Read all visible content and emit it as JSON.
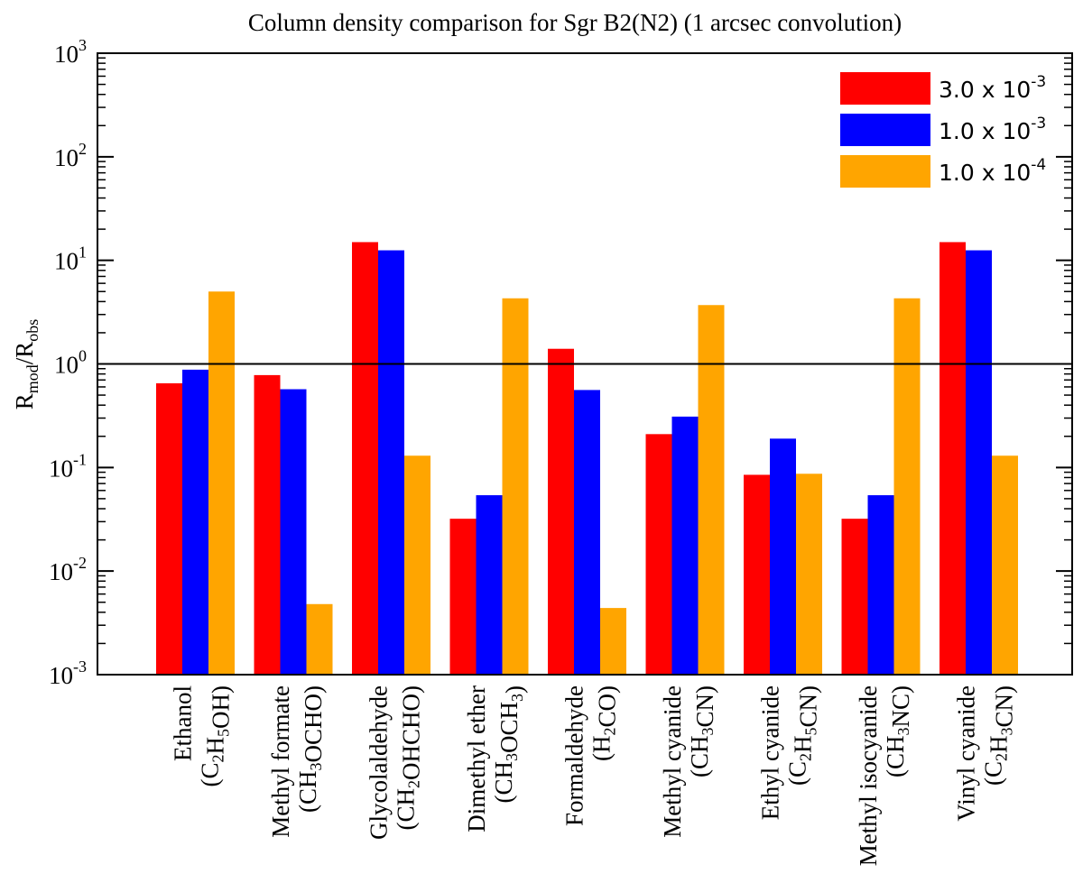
{
  "chart_data": {
    "type": "bar",
    "title": "Column density comparison for Sgr B2(N2) (1 arcsec convolution)",
    "ylabel": {
      "base": "R",
      "sub_mod": "mod",
      "slash": "/R",
      "sub_obs": "obs"
    },
    "yscale": "log",
    "ylim": [
      0.001,
      1000
    ],
    "yticks": [
      {
        "base": "10",
        "exp": "-3",
        "value": 0.001
      },
      {
        "base": "10",
        "exp": "-2",
        "value": 0.01
      },
      {
        "base": "10",
        "exp": "-1",
        "value": 0.1
      },
      {
        "base": "10",
        "exp": "0",
        "value": 1
      },
      {
        "base": "10",
        "exp": "1",
        "value": 10
      },
      {
        "base": "10",
        "exp": "2",
        "value": 100
      },
      {
        "base": "10",
        "exp": "3",
        "value": 1000
      }
    ],
    "reference_line": 1,
    "legend_position": "top-right",
    "categories": [
      {
        "name": "Ethanol",
        "formula": [
          {
            "t": "(C"
          },
          {
            "t": "2",
            "sub": true
          },
          {
            "t": "H"
          },
          {
            "t": "5",
            "sub": true
          },
          {
            "t": "OH)"
          }
        ]
      },
      {
        "name": "Methyl formate",
        "formula": [
          {
            "t": "(CH"
          },
          {
            "t": "3",
            "sub": true
          },
          {
            "t": "OCHO)"
          }
        ]
      },
      {
        "name": "Glycolaldehyde",
        "formula": [
          {
            "t": "(CH"
          },
          {
            "t": "2",
            "sub": true
          },
          {
            "t": "OHCHO)"
          }
        ]
      },
      {
        "name": "Dimethyl ether",
        "formula": [
          {
            "t": "(CH"
          },
          {
            "t": "3",
            "sub": true
          },
          {
            "t": "OCH"
          },
          {
            "t": "3",
            "sub": true
          },
          {
            "t": ")"
          }
        ]
      },
      {
        "name": "Formaldehyde",
        "formula": [
          {
            "t": "(H"
          },
          {
            "t": "2",
            "sub": true
          },
          {
            "t": "CO)"
          }
        ]
      },
      {
        "name": "Methyl cyanide",
        "formula": [
          {
            "t": "(CH"
          },
          {
            "t": "3",
            "sub": true
          },
          {
            "t": "CN)"
          }
        ]
      },
      {
        "name": "Ethyl cyanide",
        "formula": [
          {
            "t": "(C"
          },
          {
            "t": "2",
            "sub": true
          },
          {
            "t": "H"
          },
          {
            "t": "5",
            "sub": true
          },
          {
            "t": "CN)"
          }
        ]
      },
      {
        "name": "Methyl isocyanide",
        "formula": [
          {
            "t": "(CH"
          },
          {
            "t": "3",
            "sub": true
          },
          {
            "t": "NC)"
          }
        ]
      },
      {
        "name": "Vinyl cyanide",
        "formula": [
          {
            "t": "(C"
          },
          {
            "t": "2",
            "sub": true
          },
          {
            "t": "H"
          },
          {
            "t": "3",
            "sub": true
          },
          {
            "t": "CN)"
          }
        ]
      }
    ],
    "series": [
      {
        "label_base": "3.0 x 10",
        "label_exp": "-3",
        "color": "#ff0000",
        "values": [
          0.65,
          0.78,
          15,
          0.032,
          1.4,
          0.21,
          0.085,
          0.032,
          15
        ]
      },
      {
        "label_base": "1.0 x 10",
        "label_exp": "-3",
        "color": "#0000ff",
        "values": [
          0.88,
          0.57,
          12.5,
          0.054,
          0.56,
          0.31,
          0.19,
          0.054,
          12.5
        ]
      },
      {
        "label_base": "1.0 x 10",
        "label_exp": "-4",
        "color": "#ffa500",
        "values": [
          5.0,
          0.0048,
          0.13,
          4.3,
          0.0044,
          3.7,
          0.087,
          4.3,
          0.13
        ]
      }
    ]
  }
}
